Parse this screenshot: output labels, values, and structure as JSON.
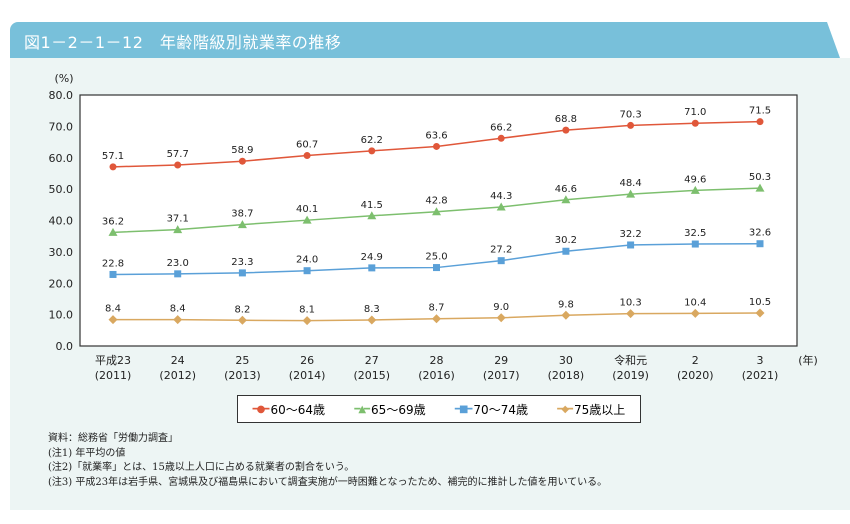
{
  "title": "図1－2－1－12　年齢階級別就業率の推移",
  "chart_data": {
    "type": "line",
    "ylabel": "(%)",
    "xunit": "(年)",
    "ylim": [
      0,
      80
    ],
    "yticks": [
      "0.0",
      "10.0",
      "20.0",
      "30.0",
      "40.0",
      "50.0",
      "60.0",
      "70.0",
      "80.0"
    ],
    "categories": [
      [
        "平成23",
        "(2011)"
      ],
      [
        "24",
        "(2012)"
      ],
      [
        "25",
        "(2013)"
      ],
      [
        "26",
        "(2014)"
      ],
      [
        "27",
        "(2015)"
      ],
      [
        "28",
        "(2016)"
      ],
      [
        "29",
        "(2017)"
      ],
      [
        "30",
        "(2018)"
      ],
      [
        "令和元",
        "(2019)"
      ],
      [
        "2",
        "(2020)"
      ],
      [
        "3",
        "(2021)"
      ]
    ],
    "grid": false,
    "legend_position": "bottom",
    "series": [
      {
        "name": "60～64歳",
        "color": "#E0573A",
        "marker": "circle",
        "values": [
          57.1,
          57.7,
          58.9,
          60.7,
          62.2,
          63.6,
          66.2,
          68.8,
          70.3,
          71.0,
          71.5
        ]
      },
      {
        "name": "65～69歳",
        "color": "#7DBF6E",
        "marker": "triangle",
        "values": [
          36.2,
          37.1,
          38.7,
          40.1,
          41.5,
          42.8,
          44.3,
          46.6,
          48.4,
          49.6,
          50.3
        ]
      },
      {
        "name": "70～74歳",
        "color": "#5AA0D8",
        "marker": "square",
        "values": [
          22.8,
          23.0,
          23.3,
          24.0,
          24.9,
          25.0,
          27.2,
          30.2,
          32.2,
          32.5,
          32.6
        ]
      },
      {
        "name": "75歳以上",
        "color": "#D9A860",
        "marker": "diamond",
        "values": [
          8.4,
          8.4,
          8.2,
          8.1,
          8.3,
          8.7,
          9.0,
          9.8,
          10.3,
          10.4,
          10.5
        ]
      }
    ]
  },
  "notes": [
    "資料：総務省「労働力調査」",
    "(注1) 年平均の値",
    "(注2)「就業率」とは、15歳以上人口に占める就業者の割合をいう。",
    "(注3) 平成23年は岩手県、宮城県及び福島県において調査実施が一時困難となったため、補完的に推計した値を用いている。"
  ]
}
